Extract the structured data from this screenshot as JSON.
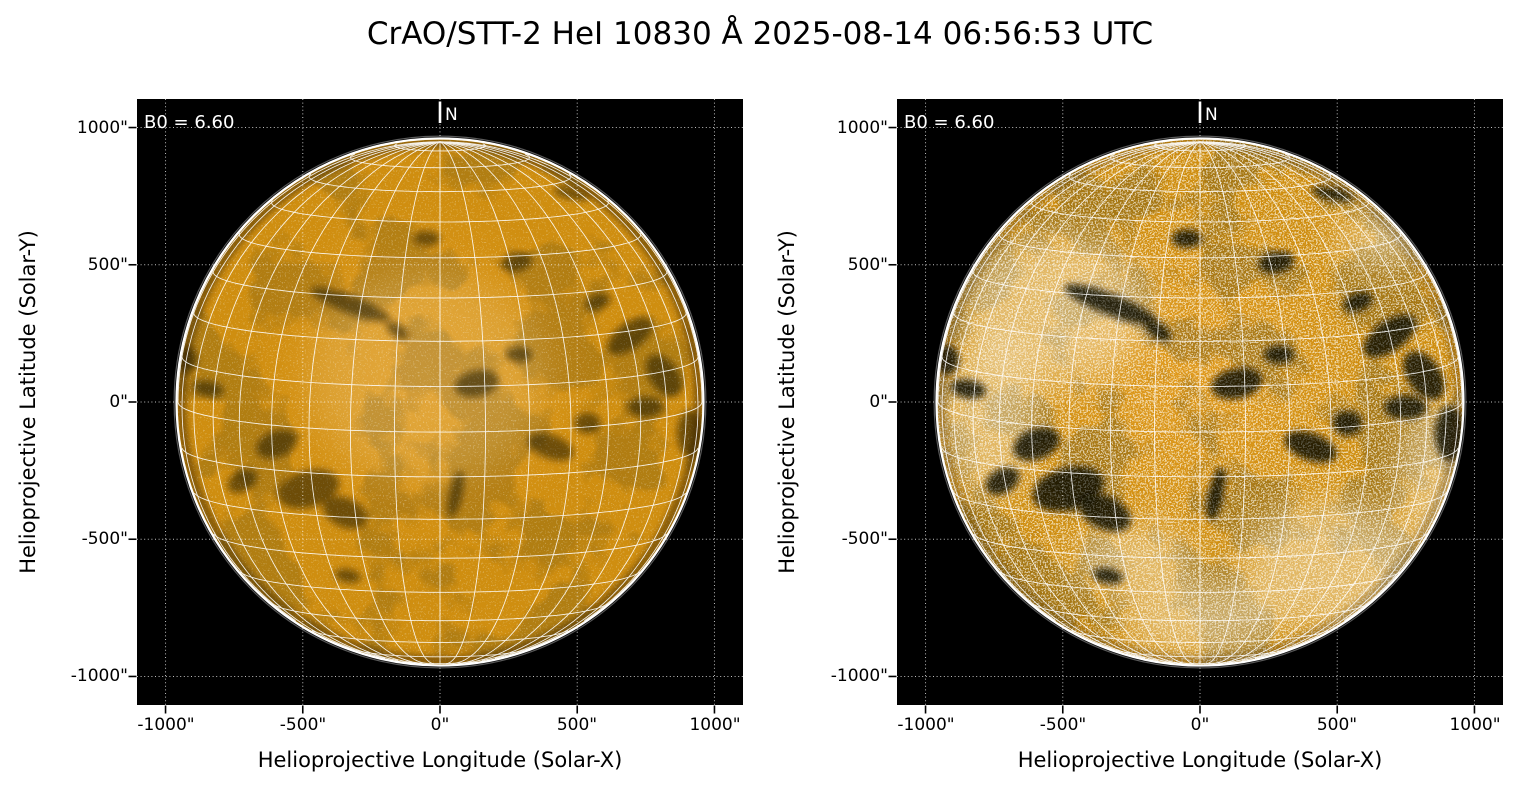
{
  "title": "CrAO/STT-2 HeI 10830 Å 2025-08-14 06:56:53 UTC",
  "axes": {
    "xlabel": "Helioprojective Longitude (Solar-X)",
    "ylabel": "Helioprojective Latitude (Solar-Y)",
    "xticks": [
      "-1000\"",
      "-500\"",
      "0\"",
      "500\"",
      "1000\""
    ],
    "yticks": [
      "1000\"",
      "500\"",
      "0\"",
      "-500\"",
      "-1000\""
    ]
  },
  "panels": [
    {
      "id": "left",
      "b0_label": "B0 = 6.60",
      "north_label": "N",
      "rendering": "low-contrast HeI 10830 filtergram"
    },
    {
      "id": "right",
      "b0_label": "B0 = 6.60",
      "north_label": "N",
      "rendering": "high-contrast HeI 10830 filtergram"
    }
  ],
  "colors": {
    "figure_bg": "#ffffff",
    "panel_bg": "#000000",
    "disk_core": "#e09a1e",
    "disk_base": "#cf8e10",
    "disk_edge_dark": "#6e4a08",
    "limb_ring": "#ffffff",
    "helio_grid": "#ffffff",
    "plot_grid": "#ffffff",
    "dark_feature": "#0d0801",
    "bright_patch": "#fff8e6",
    "axis_text": "#000000",
    "panel_text": "#ffffff"
  },
  "chart_data": {
    "type": "heatmap",
    "title": "CrAO/STT-2 HeI 10830 Å 2025-08-14 06:56:53 UTC",
    "xlabel": "Helioprojective Longitude (Solar-X)",
    "ylabel": "Helioprojective Latitude (Solar-Y)",
    "xticks_arcsec": [
      -1000,
      -500,
      0,
      500,
      1000
    ],
    "yticks_arcsec": [
      1000,
      500,
      0,
      -500,
      -1000
    ],
    "xlim_arcsec": [
      -1104,
      1104
    ],
    "ylim_arcsec": [
      -1104,
      1104
    ],
    "solar_radius_arcsec": 960,
    "b0_deg": 6.6,
    "heliographic_grid_spacing_deg": 10,
    "plot_grid_style": "dotted white lines every 500 arcsec",
    "panels": [
      {
        "name": "left",
        "description": "HeI 10830 Å solar disk, soft contrast, faint dark filaments"
      },
      {
        "name": "right",
        "description": "HeI 10830 Å solar disk, enhanced contrast, strong dark absorption features and bright mottling"
      }
    ],
    "features": [
      {
        "x": -0.34,
        "y": -0.37,
        "rx": 0.16,
        "ry": 0.035,
        "rot": 21
      },
      {
        "x": -0.16,
        "y": -0.27,
        "rx": 0.05,
        "ry": 0.025,
        "rot": 35
      },
      {
        "x": 0.5,
        "y": -0.79,
        "rx": 0.07,
        "ry": 0.02,
        "rot": 12
      },
      {
        "x": 0.29,
        "y": -0.53,
        "rx": 0.06,
        "ry": 0.035,
        "rot": -10
      },
      {
        "x": 0.72,
        "y": -0.25,
        "rx": 0.1,
        "ry": 0.05,
        "rot": -35
      },
      {
        "x": 0.85,
        "y": -0.1,
        "rx": 0.09,
        "ry": 0.055,
        "rot": 55
      },
      {
        "x": 0.78,
        "y": 0.02,
        "rx": 0.07,
        "ry": 0.04,
        "rot": 0
      },
      {
        "x": 0.6,
        "y": -0.38,
        "rx": 0.05,
        "ry": 0.03,
        "rot": -20
      },
      {
        "x": -0.88,
        "y": -0.05,
        "rx": 0.06,
        "ry": 0.03,
        "rot": 10
      },
      {
        "x": -0.96,
        "y": -0.16,
        "rx": 0.04,
        "ry": 0.05,
        "rot": 0
      },
      {
        "x": -0.62,
        "y": 0.16,
        "rx": 0.08,
        "ry": 0.05,
        "rot": -20
      },
      {
        "x": -0.5,
        "y": 0.33,
        "rx": 0.12,
        "ry": 0.07,
        "rot": -15
      },
      {
        "x": -0.36,
        "y": 0.42,
        "rx": 0.09,
        "ry": 0.055,
        "rot": 25
      },
      {
        "x": 0.06,
        "y": 0.35,
        "rx": 0.025,
        "ry": 0.09,
        "rot": 12
      },
      {
        "x": 0.14,
        "y": -0.07,
        "rx": 0.085,
        "ry": 0.05,
        "rot": -12
      },
      {
        "x": 0.3,
        "y": -0.18,
        "rx": 0.05,
        "ry": 0.03,
        "rot": 0
      },
      {
        "x": 0.42,
        "y": 0.17,
        "rx": 0.09,
        "ry": 0.045,
        "rot": 20
      },
      {
        "x": 0.56,
        "y": 0.08,
        "rx": 0.05,
        "ry": 0.04,
        "rot": 0
      },
      {
        "x": -0.35,
        "y": 0.66,
        "rx": 0.05,
        "ry": 0.025,
        "rot": 10
      },
      {
        "x": -0.05,
        "y": -0.62,
        "rx": 0.05,
        "ry": 0.03,
        "rot": 0
      },
      {
        "x": 0.95,
        "y": 0.12,
        "rx": 0.05,
        "ry": 0.09,
        "rot": 0
      },
      {
        "x": -0.75,
        "y": 0.3,
        "rx": 0.06,
        "ry": 0.04,
        "rot": -30
      }
    ],
    "bright_regions": [
      {
        "panel": "right",
        "x": -0.55,
        "y": -0.35,
        "rx": 0.35,
        "ry": 0.28
      },
      {
        "panel": "right",
        "x": -0.8,
        "y": 0.05,
        "rx": 0.18,
        "ry": 0.3
      },
      {
        "panel": "right",
        "x": 0.5,
        "y": 0.62,
        "rx": 0.34,
        "ry": 0.24
      },
      {
        "panel": "right",
        "x": 0.0,
        "y": 0.82,
        "rx": 0.3,
        "ry": 0.14
      },
      {
        "panel": "right",
        "x": 0.88,
        "y": 0.28,
        "rx": 0.12,
        "ry": 0.28
      },
      {
        "panel": "right",
        "x": -0.25,
        "y": 0.6,
        "rx": 0.22,
        "ry": 0.13
      },
      {
        "panel": "right",
        "x": 0.7,
        "y": -0.62,
        "rx": 0.18,
        "ry": 0.1
      },
      {
        "panel": "left",
        "x": -0.05,
        "y": -0.1,
        "rx": 0.45,
        "ry": 0.4
      }
    ]
  }
}
